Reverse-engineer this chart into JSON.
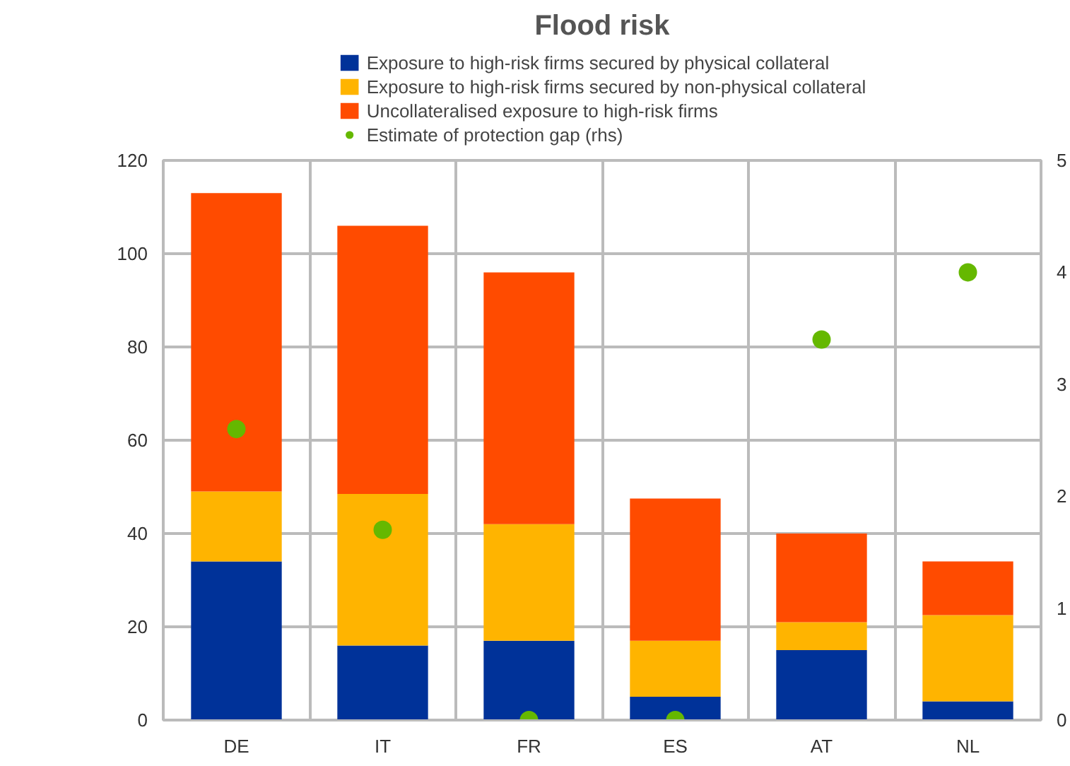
{
  "chart_data": {
    "type": "bar",
    "title": "Flood risk",
    "stacked": true,
    "categories": [
      "DE",
      "IT",
      "FR",
      "ES",
      "AT",
      "NL"
    ],
    "series": [
      {
        "name": "Exposure to high-risk firms secured by physical collateral",
        "color": "#003299",
        "values": [
          34,
          16,
          17,
          5,
          15,
          4
        ]
      },
      {
        "name": "Exposure to high-risk firms secured by non-physical collateral",
        "color": "#ffb400",
        "values": [
          15,
          32.5,
          25,
          12,
          6,
          18.5
        ]
      },
      {
        "name": "Uncollateralised exposure to high-risk firms",
        "color": "#ff4b00",
        "values": [
          64,
          57.5,
          54,
          30.5,
          19,
          11.5
        ]
      },
      {
        "name": "Estimate of protection gap (rhs)",
        "type": "scatter",
        "axis": "y2",
        "color": "#65b800",
        "x": [
          "DE",
          "IT",
          "FR",
          "ES",
          "AT",
          "NL"
        ],
        "values": [
          2.6,
          1.7,
          0,
          0,
          3.4,
          4.0
        ]
      }
    ],
    "ylim": [
      0,
      120
    ],
    "yticks": [
      0,
      20,
      40,
      60,
      80,
      100,
      120
    ],
    "y2lim": [
      0,
      5
    ],
    "y2ticks": [
      0,
      1,
      2,
      3,
      4,
      5
    ],
    "grid": true,
    "legend": "top",
    "marker": "circle"
  }
}
